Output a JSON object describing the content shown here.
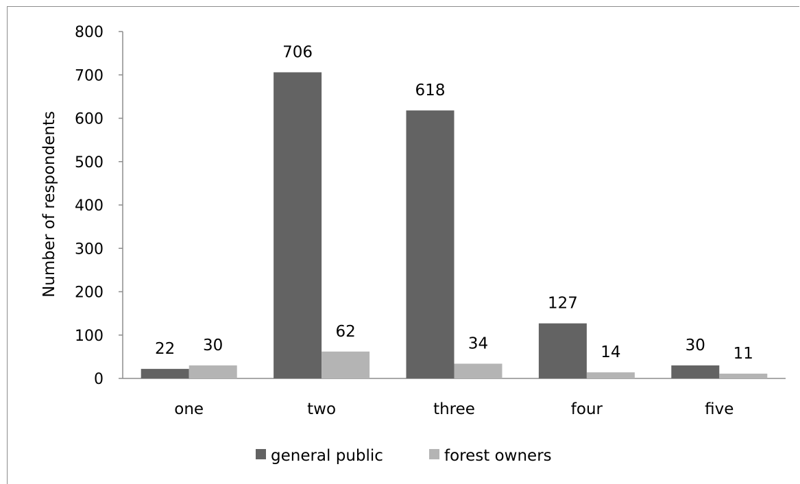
{
  "chart_data": {
    "type": "bar",
    "categories": [
      "one",
      "two",
      "three",
      "four",
      "five"
    ],
    "series": [
      {
        "name": "general public",
        "values": [
          22,
          706,
          618,
          127,
          30
        ],
        "color": "#636363"
      },
      {
        "name": "forest owners",
        "values": [
          30,
          62,
          34,
          14,
          11
        ],
        "color": "#b4b4b4"
      }
    ],
    "title": "",
    "xlabel": "",
    "ylabel": "Number of respondents",
    "ylim": [
      0,
      800
    ],
    "yticks": [
      0,
      100,
      200,
      300,
      400,
      500,
      600,
      700,
      800
    ],
    "grid": false,
    "legend_position": "bottom"
  }
}
